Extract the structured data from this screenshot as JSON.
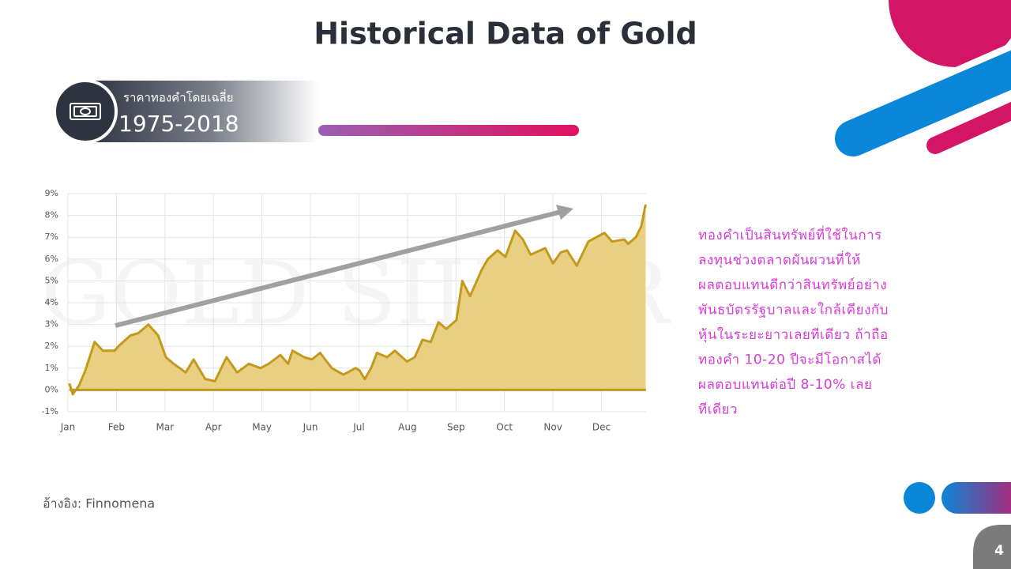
{
  "slide": {
    "title": "Historical Data of Gold",
    "badge_caption": "ราคาทองคำโดยเฉลี่ย",
    "badge_period": "1975-2018",
    "paragraph": [
      "ทองคำเป็นสินทรัพย์ที่ใช้ในการ",
      "ลงทุนช่วงตลาดผันผวนที่ให้",
      "ผลตอบแทนดีกว่าสินทรัพย์อย่าง",
      "พันธบัตรรัฐบาลและใกล้เคียงกับ",
      "หุ้นในระยะยาวเลยทีเดียว ถ้าถือ",
      "ทองคำ 10-20 ปีจะมีโอกาสได้",
      "ผลตอบแทนต่อปี 8-10% เลย",
      "ทีเดียว"
    ],
    "reference": "อ้างอิง: Finnomena",
    "page_number": "4"
  },
  "chart_data": {
    "type": "area",
    "watermark": "GOLD SILVER",
    "color": "#c49a1c",
    "fill_color": "#e8cf82",
    "grid": true,
    "x": [
      0.03,
      0.1,
      0.23,
      0.36,
      0.55,
      0.72,
      0.96,
      1.04,
      1.29,
      1.45,
      1.66,
      1.86,
      2.02,
      2.18,
      2.43,
      2.59,
      2.83,
      3.03,
      3.27,
      3.49,
      3.73,
      3.97,
      4.14,
      4.38,
      4.54,
      4.63,
      4.87,
      5.03,
      5.2,
      5.44,
      5.68,
      5.93,
      6.01,
      6.12,
      6.25,
      6.37,
      6.58,
      6.74,
      6.99,
      7.15,
      7.31,
      7.48,
      7.64,
      7.8,
      8.01,
      8.13,
      8.29,
      8.53,
      8.66,
      8.86,
      9.02,
      9.22,
      9.38,
      9.54,
      9.84,
      10.0,
      10.16,
      10.29,
      10.49,
      10.73,
      11.06,
      11.22,
      11.47,
      11.55,
      11.71,
      11.82,
      11.91
    ],
    "values": [
      0.3,
      -0.2,
      0.2,
      0.9,
      2.2,
      1.8,
      1.8,
      2.0,
      2.5,
      2.6,
      3.0,
      2.5,
      1.5,
      1.2,
      0.8,
      1.4,
      0.5,
      0.4,
      1.5,
      0.8,
      1.2,
      1.0,
      1.2,
      1.6,
      1.2,
      1.8,
      1.5,
      1.4,
      1.7,
      1.0,
      0.7,
      1.0,
      0.9,
      0.5,
      1.0,
      1.7,
      1.5,
      1.8,
      1.3,
      1.5,
      2.3,
      2.2,
      3.1,
      2.8,
      3.2,
      5.0,
      4.3,
      5.5,
      6.0,
      6.4,
      6.1,
      7.3,
      6.9,
      6.2,
      6.5,
      5.8,
      6.3,
      6.4,
      5.7,
      6.8,
      7.2,
      6.8,
      6.9,
      6.7,
      7.0,
      7.5,
      8.5
    ],
    "xlim": [
      0,
      11.92
    ],
    "xticks": [
      {
        "value": 0,
        "label": "Jan"
      },
      {
        "value": 1,
        "label": "Feb"
      },
      {
        "value": 2,
        "label": "Mar"
      },
      {
        "value": 3,
        "label": "Apr"
      },
      {
        "value": 4,
        "label": "May"
      },
      {
        "value": 5,
        "label": "Jun"
      },
      {
        "value": 6,
        "label": "Jul"
      },
      {
        "value": 7,
        "label": "Aug"
      },
      {
        "value": 8,
        "label": "Sep"
      },
      {
        "value": 9,
        "label": "Oct"
      },
      {
        "value": 10,
        "label": "Nov"
      },
      {
        "value": 11,
        "label": "Dec"
      }
    ],
    "ylim": [
      -1,
      9
    ],
    "yticks": [
      {
        "value": -1,
        "label": "-1%"
      },
      {
        "value": 0,
        "label": "0%"
      },
      {
        "value": 1,
        "label": "1%"
      },
      {
        "value": 2,
        "label": "2%"
      },
      {
        "value": 3,
        "label": "3%"
      },
      {
        "value": 4,
        "label": "4%"
      },
      {
        "value": 5,
        "label": "5%"
      },
      {
        "value": 6,
        "label": "6%"
      },
      {
        "value": 7,
        "label": "7%"
      },
      {
        "value": 8,
        "label": "8%"
      },
      {
        "value": 9,
        "label": "9%"
      }
    ]
  }
}
